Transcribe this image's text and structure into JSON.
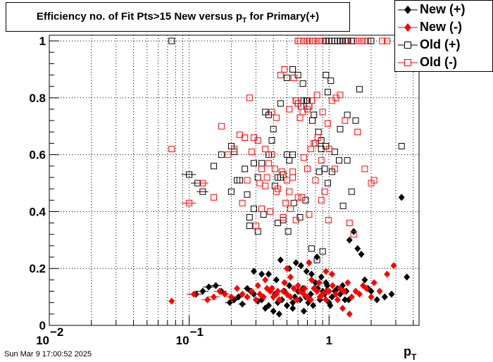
{
  "chart_data": {
    "type": "scatter",
    "title": "Efficiency no. of Fit Pts>15 New versus p",
    "title_sub": "T",
    "title_suffix": " for Primary(+)",
    "xlabel": "p",
    "xlabel_sub": "T",
    "ylabel": "",
    "x_scale": "log",
    "xlim": [
      0.01,
      4.4
    ],
    "ylim": [
      0,
      1.02
    ],
    "grid": true,
    "legend_position": "top-right",
    "x_tick_labels": [
      {
        "value": 0.01,
        "base": "10",
        "exp": "−2"
      },
      {
        "value": 0.1,
        "base": "10",
        "exp": "−1"
      },
      {
        "value": 1,
        "base": "1",
        "exp": ""
      }
    ],
    "y_ticks": [
      0,
      0.2,
      0.4,
      0.6,
      0.8,
      1
    ],
    "y_tick_labels": [
      "0",
      "0.2",
      "0.4",
      "0.6",
      "0.8",
      "1"
    ],
    "series": [
      {
        "name": "New (+)",
        "marker": "filled-diamond",
        "color": "#000000",
        "x": [
          0.112,
          0.125,
          0.138,
          0.155,
          0.17,
          0.195,
          0.21,
          0.225,
          0.24,
          0.26,
          0.275,
          0.29,
          0.31,
          0.33,
          0.35,
          0.37,
          0.39,
          0.41,
          0.43,
          0.46,
          0.48,
          0.5,
          0.52,
          0.55,
          0.57,
          0.6,
          0.62,
          0.65,
          0.68,
          0.71,
          0.74,
          0.77,
          0.8,
          0.83,
          0.86,
          0.9,
          0.93,
          0.97,
          1.0,
          1.05,
          1.1,
          1.15,
          1.2,
          1.25,
          1.3,
          1.4,
          1.5,
          1.6,
          1.7,
          1.8,
          1.9,
          2.0,
          2.2,
          2.5,
          2.8,
          3.3,
          3.6,
          0.29,
          0.33,
          0.37,
          0.42,
          0.45,
          0.48,
          0.52,
          0.58,
          0.63,
          0.69,
          0.75,
          0.82,
          0.88,
          0.95,
          1.02,
          1.33,
          1.38,
          0.4,
          0.44,
          0.55,
          0.66
        ],
        "y": [
          0.11,
          0.12,
          0.135,
          0.14,
          0.12,
          0.08,
          0.09,
          0.1,
          0.075,
          0.13,
          0.12,
          0.11,
          0.085,
          0.09,
          0.06,
          0.07,
          0.13,
          0.11,
          0.08,
          0.09,
          0.12,
          0.07,
          0.14,
          0.08,
          0.1,
          0.12,
          0.09,
          0.13,
          0.1,
          0.08,
          0.11,
          0.07,
          0.15,
          0.13,
          0.09,
          0.12,
          0.11,
          0.14,
          0.08,
          0.1,
          0.12,
          0.13,
          0.11,
          0.14,
          0.09,
          0.3,
          0.33,
          0.27,
          0.25,
          0.16,
          0.13,
          0.12,
          0.09,
          0.1,
          0.11,
          0.45,
          0.17,
          0.19,
          0.18,
          0.18,
          0.16,
          0.23,
          0.15,
          0.2,
          0.22,
          0.21,
          0.19,
          0.18,
          0.24,
          0.17,
          0.15,
          0.07,
          0.12,
          0.09,
          0.05,
          0.04,
          0.06,
          0.05
        ],
        "x_err": [
          0.012,
          0.012,
          0.012,
          0.015,
          0.015,
          0.015,
          0.015,
          0.015,
          0.015,
          0.015,
          0,
          0,
          0,
          0,
          0,
          0,
          0,
          0,
          0,
          0,
          0,
          0,
          0,
          0,
          0,
          0,
          0,
          0,
          0,
          0,
          0,
          0,
          0,
          0,
          0,
          0,
          0,
          0,
          0,
          0,
          0,
          0,
          0,
          0,
          0,
          0,
          0,
          0,
          0,
          0,
          0,
          0,
          0,
          0,
          0,
          0,
          0,
          0,
          0,
          0,
          0,
          0,
          0,
          0,
          0,
          0,
          0,
          0,
          0,
          0,
          0,
          0,
          0,
          0,
          0,
          0,
          0,
          0
        ]
      },
      {
        "name": "New (-)",
        "marker": "filled-diamond",
        "color": "#ff0000",
        "x": [
          0.075,
          0.108,
          0.135,
          0.15,
          0.165,
          0.18,
          0.2,
          0.22,
          0.24,
          0.26,
          0.28,
          0.3,
          0.32,
          0.34,
          0.36,
          0.38,
          0.4,
          0.42,
          0.44,
          0.47,
          0.5,
          0.53,
          0.56,
          0.59,
          0.62,
          0.66,
          0.7,
          0.74,
          0.78,
          0.82,
          0.86,
          0.9,
          0.95,
          1.0,
          1.06,
          1.12,
          1.2,
          1.28,
          1.36,
          1.45,
          1.55,
          1.65,
          1.75,
          1.85,
          2.0,
          2.1,
          2.3,
          2.6,
          2.9,
          0.31,
          0.35,
          0.39,
          0.43,
          0.48,
          0.53,
          0.6,
          0.67,
          0.75,
          0.85,
          0.95,
          1.05,
          1.15,
          1.25,
          1.4,
          0.5,
          0.72,
          0.95
        ],
        "y": [
          0.085,
          0.11,
          0.09,
          0.1,
          0.12,
          0.11,
          0.1,
          0.13,
          0.11,
          0.1,
          0.12,
          0.09,
          0.11,
          0.1,
          0.13,
          0.12,
          0.1,
          0.11,
          0.09,
          0.12,
          0.11,
          0.1,
          0.13,
          0.09,
          0.12,
          0.11,
          0.1,
          0.09,
          0.13,
          0.12,
          0.1,
          0.11,
          0.09,
          0.12,
          0.14,
          0.11,
          0.13,
          0.12,
          0.15,
          0.1,
          0.12,
          0.11,
          0.14,
          0.13,
          0.1,
          0.15,
          0.12,
          0.18,
          0.21,
          0.14,
          0.16,
          0.13,
          0.12,
          0.15,
          0.17,
          0.14,
          0.13,
          0.16,
          0.15,
          0.12,
          0.18,
          0.09,
          0.06,
          0.04,
          0.2,
          0.22,
          0.19
        ],
        "x_err": [
          0,
          0.012,
          0.012,
          0.015,
          0.015,
          0.015,
          0.015,
          0,
          0,
          0,
          0,
          0,
          0,
          0,
          0,
          0,
          0,
          0,
          0,
          0,
          0,
          0,
          0,
          0,
          0,
          0,
          0,
          0,
          0,
          0,
          0,
          0,
          0,
          0,
          0,
          0,
          0,
          0,
          0,
          0,
          0,
          0,
          0,
          0,
          0,
          0,
          0,
          0,
          0,
          0,
          0,
          0,
          0,
          0,
          0,
          0,
          0,
          0,
          0,
          0,
          0,
          0,
          0,
          0,
          0,
          0,
          0
        ]
      },
      {
        "name": "Old (+)",
        "marker": "open-square",
        "color": "#000000",
        "x": [
          0.075,
          0.1,
          0.115,
          0.125,
          0.15,
          0.17,
          0.2,
          0.21,
          0.23,
          0.26,
          0.27,
          0.29,
          0.31,
          0.33,
          0.35,
          0.37,
          0.39,
          0.41,
          0.43,
          0.45,
          0.47,
          0.5,
          0.52,
          0.55,
          0.58,
          0.6,
          0.63,
          0.66,
          0.69,
          0.72,
          0.76,
          0.8,
          0.84,
          0.88,
          0.93,
          0.98,
          1.03,
          1.1,
          1.18,
          1.26,
          1.35,
          1.45,
          1.55,
          1.65,
          3.3,
          0.27,
          0.29,
          0.31,
          0.34,
          0.37,
          0.4,
          0.43,
          0.47,
          0.51,
          0.56,
          0.62,
          0.68,
          0.75,
          0.82,
          0.9,
          0.98,
          0.2,
          0.22,
          0.25,
          0.45,
          0.5,
          0.55,
          0.6,
          0.65,
          0.7,
          0.78,
          0.88,
          0.95,
          1.05,
          1.2,
          1.35,
          0.95,
          0.85
        ],
        "y": [
          1.0,
          0.53,
          0.5,
          0.47,
          0.56,
          0.6,
          0.63,
          0.61,
          0.51,
          0.46,
          0.38,
          0.57,
          0.52,
          0.57,
          0.75,
          0.74,
          0.65,
          0.49,
          0.52,
          0.52,
          0.53,
          0.6,
          0.58,
          0.6,
          0.79,
          0.78,
          0.77,
          0.79,
          0.79,
          0.77,
          0.72,
          0.64,
          0.68,
          0.62,
          0.55,
          0.82,
          0.86,
          0.61,
          0.58,
          0.42,
          0.74,
          0.47,
          0.72,
          0.83,
          0.63,
          0.35,
          0.41,
          0.33,
          0.39,
          0.6,
          0.69,
          0.36,
          0.37,
          0.33,
          0.43,
          0.38,
          0.44,
          0.27,
          0.23,
          0.26,
          0.5,
          0.47,
          0.51,
          0.55,
          0.78,
          0.87,
          0.9,
          0.88,
          0.85,
          0.79,
          0.74,
          0.65,
          0.63,
          0.54,
          0.69,
          0.58,
          0.88,
          0.54
        ],
        "x_err": [
          0,
          0.012,
          0.012,
          0.012,
          0,
          0,
          0,
          0,
          0,
          0,
          0,
          0,
          0,
          0,
          0,
          0,
          0,
          0,
          0,
          0,
          0,
          0,
          0,
          0,
          0,
          0,
          0,
          0,
          0,
          0,
          0,
          0,
          0,
          0,
          0,
          0,
          0,
          0,
          0,
          0,
          0,
          0,
          0,
          0,
          0,
          0,
          0,
          0,
          0,
          0,
          0,
          0,
          0,
          0,
          0,
          0,
          0,
          0,
          0,
          0,
          0,
          0,
          0,
          0,
          0,
          0,
          0,
          0,
          0,
          0,
          0,
          0,
          0,
          0,
          0,
          0,
          0,
          0
        ]
      },
      {
        "name": "Old (-)",
        "marker": "open-square",
        "color": "#ff0000",
        "x": [
          0.075,
          0.1,
          0.125,
          0.15,
          0.17,
          0.19,
          0.21,
          0.23,
          0.25,
          0.27,
          0.29,
          0.31,
          0.33,
          0.35,
          0.37,
          0.39,
          0.41,
          0.43,
          0.46,
          0.49,
          0.52,
          0.55,
          0.58,
          0.62,
          0.66,
          0.7,
          0.74,
          0.78,
          0.83,
          0.88,
          0.93,
          0.99,
          1.05,
          1.12,
          1.2,
          1.3,
          1.4,
          1.5,
          1.6,
          1.8,
          2.0,
          2.1,
          0.3,
          0.33,
          0.36,
          0.39,
          0.42,
          0.45,
          0.48,
          0.52,
          0.56,
          0.6,
          0.65,
          0.7,
          0.75,
          0.82,
          0.9,
          0.98,
          0.28,
          0.32,
          0.35,
          0.38,
          0.42,
          0.47,
          0.53,
          0.58,
          0.64,
          0.72,
          0.8,
          0.88,
          1.0,
          1.1,
          0.24,
          0.26,
          0.5,
          0.55,
          0.6
        ],
        "y": [
          0.62,
          0.43,
          0.5,
          0.45,
          0.7,
          0.6,
          0.62,
          0.67,
          0.66,
          0.8,
          0.66,
          0.65,
          0.55,
          0.62,
          0.57,
          0.6,
          0.55,
          0.48,
          0.54,
          0.43,
          0.47,
          0.54,
          0.79,
          0.73,
          0.59,
          0.55,
          0.62,
          0.64,
          0.66,
          0.58,
          0.47,
          0.37,
          0.79,
          0.8,
          0.81,
          0.72,
          0.36,
          0.32,
          0.68,
          0.55,
          0.5,
          0.51,
          0.35,
          0.41,
          0.52,
          0.75,
          0.73,
          0.88,
          0.9,
          0.76,
          0.87,
          0.78,
          0.75,
          0.76,
          0.79,
          0.81,
          0.75,
          0.71,
          0.61,
          0.5,
          0.49,
          0.4,
          0.47,
          0.38,
          0.41,
          0.37,
          0.45,
          0.39,
          0.51,
          0.44,
          0.62,
          0.55,
          0.43,
          0.51,
          0.51,
          0.52,
          0.45
        ],
        "x_err": [
          0,
          0.012,
          0.012,
          0,
          0,
          0,
          0,
          0,
          0,
          0,
          0,
          0,
          0,
          0,
          0,
          0,
          0,
          0,
          0,
          0,
          0,
          0,
          0,
          0,
          0,
          0,
          0,
          0,
          0,
          0,
          0,
          0,
          0,
          0,
          0,
          0,
          0,
          0,
          0,
          0,
          0,
          0,
          0,
          0,
          0,
          0,
          0,
          0,
          0,
          0,
          0,
          0,
          0,
          0,
          0,
          0,
          0,
          0,
          0,
          0,
          0,
          0,
          0,
          0,
          0,
          0,
          0,
          0,
          0,
          0,
          0,
          0,
          0,
          0,
          0,
          0,
          0
        ]
      },
      {
        "name": "",
        "marker": "open-square",
        "color": "#ff0000",
        "x": [
          0.6,
          0.62,
          0.66,
          0.7,
          0.73,
          0.76,
          0.8,
          0.85,
          0.9,
          0.95,
          1.0,
          1.1,
          1.3,
          1.5,
          1.6,
          1.7,
          1.8,
          1.9,
          2.4,
          2.6
        ],
        "y": [
          1,
          1,
          1,
          1,
          1,
          1,
          1,
          1,
          1,
          1,
          1,
          1,
          1,
          1,
          1,
          1,
          1,
          1,
          1,
          1
        ],
        "x_err": [
          0,
          0,
          0,
          0,
          0,
          0,
          0,
          0,
          0,
          0,
          0,
          0,
          0,
          0,
          0,
          0,
          0,
          0,
          0,
          0
        ]
      },
      {
        "name": "",
        "marker": "open-square",
        "color": "#000000",
        "x": [
          0.95,
          1.0,
          1.05,
          1.1,
          1.15,
          1.2,
          1.25,
          1.35,
          1.45,
          2.0
        ],
        "y": [
          1,
          1,
          1,
          1,
          1,
          1,
          1,
          1,
          1,
          1
        ],
        "x_err": [
          0,
          0,
          0,
          0,
          0,
          0,
          0,
          0,
          0,
          0
        ]
      }
    ]
  },
  "footer": {
    "timestamp": "Sun Mar  9 17:00:52 2025"
  }
}
